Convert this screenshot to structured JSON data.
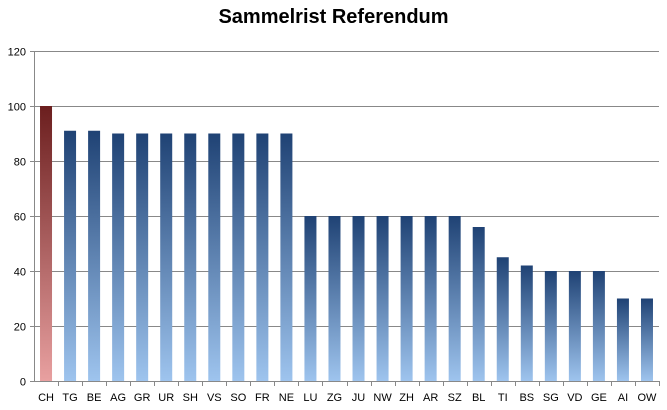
{
  "chart_data": {
    "type": "bar",
    "title": "Sammelrist Referendum",
    "xlabel": "",
    "ylabel": "",
    "ylim": [
      0,
      120
    ],
    "yticks": [
      0,
      20,
      40,
      60,
      80,
      100,
      120
    ],
    "grid": true,
    "legend": "none",
    "categories": [
      "CH",
      "TG",
      "BE",
      "AG",
      "GR",
      "UR",
      "SH",
      "VS",
      "SO",
      "FR",
      "NE",
      "LU",
      "ZG",
      "JU",
      "NW",
      "ZH",
      "AR",
      "SZ",
      "BL",
      "TI",
      "BS",
      "SG",
      "VD",
      "GE",
      "AI",
      "OW"
    ],
    "values": [
      100,
      91,
      91,
      90,
      90,
      90,
      90,
      90,
      90,
      90,
      90,
      60,
      60,
      60,
      60,
      60,
      60,
      60,
      56,
      45,
      42,
      40,
      40,
      40,
      30,
      30
    ],
    "colors": {
      "highlight_top": "#6b1e1e",
      "highlight_bottom": "#e8a0a0",
      "bar_top": "#1f4274",
      "bar_bottom": "#9ec4ee",
      "grid": "#888888",
      "axis": "#888888"
    }
  }
}
